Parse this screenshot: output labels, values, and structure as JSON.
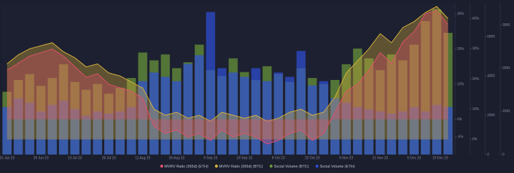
{
  "chart_data": {
    "type": "combo",
    "categories": [
      "15 Jun 23",
      null,
      null,
      "29 Jun 23",
      null,
      null,
      "13 Jul 23",
      null,
      null,
      "28 Jul 23",
      null,
      null,
      "11 Aug 23",
      null,
      null,
      "26 Aug 23",
      null,
      null,
      "9 Sep 23",
      null,
      null,
      "24 Sep 23",
      null,
      null,
      "8 Oct 23",
      null,
      null,
      "22 Oct 23",
      null,
      null,
      "6 Nov 23",
      null,
      null,
      "21 Nov 23",
      null,
      null,
      "5 Dec 23",
      null,
      null,
      "19 Dec 23"
    ],
    "axes": [
      {
        "lim": [
          -10,
          33
        ],
        "ticks": [
          {
            "value": -5,
            "label": "-5%"
          },
          {
            "value": 0,
            "label": "0%"
          },
          {
            "value": 10,
            "label": "10%"
          },
          {
            "value": 20,
            "label": "20%"
          },
          {
            "value": 30,
            "label": "30%"
          }
        ]
      },
      {
        "lim": [
          -5,
          45
        ],
        "ticks": [
          {
            "value": 0,
            "label": "0%"
          },
          {
            "value": 10,
            "label": "10%"
          },
          {
            "value": 20,
            "label": "20%"
          },
          {
            "value": 30,
            "label": "30%"
          },
          {
            "value": 40,
            "label": "40%"
          }
        ]
      },
      {
        "lim": [
          0,
          7700
        ],
        "ticks": [
          0,
          2000,
          4000,
          6000
        ]
      },
      {
        "lim": [
          0,
          3500
        ],
        "ticks": [
          0,
          1000,
          2000,
          3000
        ]
      }
    ],
    "series": [
      {
        "name": "Social Volume (BTC)",
        "kind": "bar",
        "axis": 2,
        "color": "#6b9a3a",
        "values": [
          3200,
          3800,
          4100,
          3500,
          3900,
          4600,
          3700,
          3300,
          3600,
          3100,
          3400,
          3900,
          5200,
          4800,
          5100,
          4400,
          4700,
          5600,
          4300,
          4000,
          4900,
          4200,
          3800,
          4500,
          4100,
          3700,
          4400,
          3900,
          3600,
          3800,
          4600,
          5400,
          4900,
          4300,
          5100,
          4800,
          5600,
          6800,
          7400,
          6200
        ]
      },
      {
        "name": "Social Volume (ETH)",
        "kind": "bar",
        "axis": 3,
        "color": "#2f4fd8",
        "values": [
          1100,
          1300,
          1200,
          1000,
          1150,
          1250,
          1050,
          900,
          1000,
          950,
          1000,
          1100,
          1700,
          1900,
          1800,
          1700,
          2100,
          2300,
          3300,
          2000,
          1900,
          1800,
          2000,
          1700,
          1900,
          1800,
          2400,
          1600,
          1700,
          1300,
          1200,
          1100,
          1050,
          1000,
          950,
          1000,
          1100,
          1000,
          1150,
          1100
        ]
      },
      {
        "name": "MVRV Ratio (365d) (BTC)",
        "kind": "area",
        "axis": 1,
        "color": "#d9b23a",
        "values": [
          25,
          28,
          30,
          31,
          32,
          29,
          27,
          24,
          25,
          22,
          21,
          19,
          17,
          10,
          8,
          9,
          7,
          8,
          6,
          9,
          8,
          7,
          8,
          6,
          7,
          9,
          10,
          8,
          9,
          14,
          22,
          26,
          30,
          35,
          32,
          37,
          39,
          42,
          44,
          40
        ]
      },
      {
        "name": "MVRV Ratio (365d) (ETH)",
        "kind": "area",
        "axis": 0,
        "color": "#e0506a",
        "values": [
          14,
          16,
          18,
          19,
          20,
          18,
          15,
          12,
          13,
          10,
          9,
          8,
          6,
          -2,
          -4,
          -3,
          -5,
          -4,
          -6,
          -3,
          -5,
          -4,
          -5,
          -7,
          -6,
          -4,
          -3,
          -6,
          -4,
          2,
          8,
          10,
          14,
          19,
          16,
          22,
          25,
          30,
          31,
          27
        ]
      }
    ]
  }
}
